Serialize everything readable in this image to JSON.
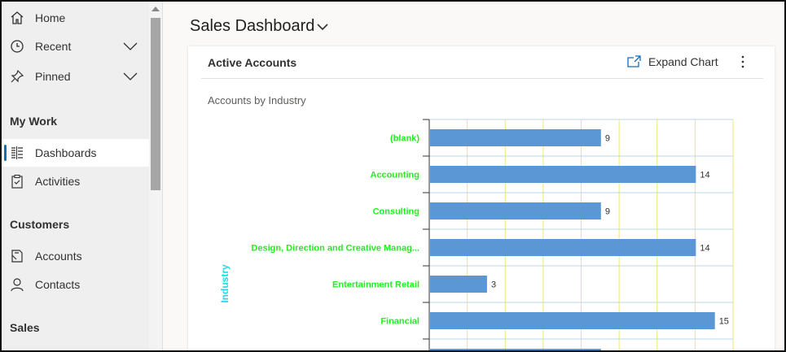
{
  "sidebar": {
    "items": [
      {
        "label": "Home",
        "icon": "home-icon"
      },
      {
        "label": "Recent",
        "icon": "clock-icon"
      },
      {
        "label": "Pinned",
        "icon": "pin-icon"
      }
    ],
    "sections": [
      {
        "title": "My Work",
        "items": [
          {
            "label": "Dashboards",
            "icon": "dashboard-icon",
            "selected": true
          },
          {
            "label": "Activities",
            "icon": "clipboard-icon"
          }
        ]
      },
      {
        "title": "Customers",
        "items": [
          {
            "label": "Accounts",
            "icon": "accounts-icon"
          },
          {
            "label": "Contacts",
            "icon": "person-icon"
          }
        ]
      },
      {
        "title": "Sales",
        "items": []
      }
    ]
  },
  "header": {
    "title": "Sales Dashboard"
  },
  "card": {
    "title": "Active Accounts",
    "expand_label": "Expand Chart",
    "subtitle": "Accounts by Industry"
  },
  "colors": {
    "bar": "#5b97d5",
    "category_label": "#22ee22",
    "axis_label": "#22d8e8",
    "gridline_vertical": "#ece87a",
    "gridline_horizontal": "#b8d8e6",
    "accent": "#0f6cbd"
  },
  "chart_data": {
    "type": "bar",
    "orientation": "horizontal",
    "ylabel": "Industry",
    "categories": [
      "(blank)",
      "Accounting",
      "Consulting",
      "Design, Direction and Creative Manag...",
      "Entertainment Retail",
      "Financial"
    ],
    "values": [
      9,
      14,
      9,
      14,
      3,
      15
    ],
    "xlim": [
      0,
      16
    ],
    "grid": true,
    "legend": "none"
  }
}
